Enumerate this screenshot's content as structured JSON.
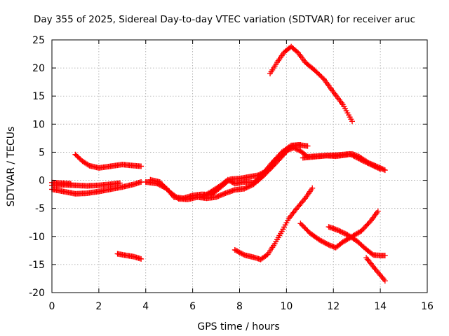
{
  "chart_data": {
    "type": "scatter",
    "title": "Day 355 of 2025, Sidereal Day-to-day VTEC variation (SDTVAR) for receiver aruc",
    "xlabel": "GPS time / hours",
    "ylabel": "SDTVAR / TECUs",
    "xlim": [
      0,
      16
    ],
    "ylim": [
      -20,
      25
    ],
    "xticks": [
      0,
      2,
      4,
      6,
      8,
      10,
      12,
      14,
      16
    ],
    "yticks": [
      -20,
      -15,
      -10,
      -5,
      0,
      5,
      10,
      15,
      20,
      25
    ],
    "grid": true,
    "marker": "plus",
    "marker_color": "#ff0000",
    "series": [
      {
        "points": [
          [
            0.0,
            -1.6
          ],
          [
            0.5,
            -2.0
          ],
          [
            1.0,
            -2.4
          ],
          [
            1.5,
            -2.3
          ],
          [
            2.0,
            -2.0
          ],
          [
            2.5,
            -1.6
          ],
          [
            3.0,
            -1.2
          ],
          [
            3.5,
            -0.7
          ],
          [
            3.8,
            -0.3
          ]
        ]
      },
      {
        "points": [
          [
            0.0,
            -0.9
          ],
          [
            0.5,
            -0.8
          ],
          [
            1.0,
            -0.9
          ],
          [
            1.5,
            -1.0
          ],
          [
            2.0,
            -0.9
          ],
          [
            2.5,
            -0.7
          ],
          [
            2.9,
            -0.5
          ]
        ]
      },
      {
        "points": [
          [
            0.0,
            -0.4
          ],
          [
            0.4,
            -0.5
          ],
          [
            0.8,
            -0.6
          ]
        ]
      },
      {
        "points": [
          [
            1.0,
            4.6
          ],
          [
            1.3,
            3.4
          ],
          [
            1.6,
            2.6
          ],
          [
            2.0,
            2.2
          ],
          [
            2.5,
            2.5
          ],
          [
            3.0,
            2.8
          ],
          [
            3.5,
            2.6
          ],
          [
            3.8,
            2.5
          ]
        ]
      },
      {
        "points": [
          [
            2.8,
            -13.1
          ],
          [
            3.2,
            -13.4
          ],
          [
            3.5,
            -13.6
          ],
          [
            3.8,
            -14.0
          ]
        ]
      },
      {
        "points": [
          [
            4.0,
            -0.3
          ],
          [
            4.5,
            -0.6
          ],
          [
            4.9,
            -1.5
          ],
          [
            5.2,
            -3.0
          ],
          [
            5.6,
            -3.2
          ],
          [
            6.0,
            -2.7
          ],
          [
            6.4,
            -2.5
          ],
          [
            6.8,
            -2.6
          ],
          [
            7.2,
            -1.2
          ],
          [
            7.6,
            0.2
          ],
          [
            8.0,
            0.3
          ],
          [
            8.4,
            0.6
          ],
          [
            8.8,
            0.9
          ],
          [
            9.2,
            1.8
          ],
          [
            9.6,
            3.8
          ],
          [
            10.0,
            5.3
          ],
          [
            10.3,
            5.8
          ],
          [
            10.6,
            5.2
          ],
          [
            10.9,
            4.2
          ],
          [
            11.3,
            4.3
          ],
          [
            11.7,
            4.4
          ],
          [
            12.1,
            4.3
          ],
          [
            12.5,
            4.5
          ],
          [
            12.8,
            4.7
          ],
          [
            13.1,
            4.2
          ],
          [
            13.5,
            3.1
          ],
          [
            14.0,
            2.2
          ],
          [
            14.2,
            1.8
          ]
        ]
      },
      {
        "points": [
          [
            4.2,
            0.1
          ],
          [
            4.6,
            -0.3
          ],
          [
            5.0,
            -2.0
          ],
          [
            5.4,
            -3.3
          ],
          [
            5.8,
            -3.4
          ],
          [
            6.2,
            -3.0
          ],
          [
            6.6,
            -3.2
          ],
          [
            7.0,
            -3.0
          ],
          [
            7.4,
            -2.3
          ],
          [
            7.8,
            -1.7
          ],
          [
            8.2,
            -1.5
          ],
          [
            8.6,
            -0.7
          ],
          [
            9.0,
            0.7
          ],
          [
            9.4,
            2.4
          ],
          [
            9.8,
            4.2
          ],
          [
            10.2,
            6.0
          ],
          [
            10.5,
            6.3
          ],
          [
            10.9,
            6.1
          ]
        ]
      },
      {
        "points": [
          [
            6.4,
            -3.0
          ],
          [
            6.8,
            -2.0
          ],
          [
            7.2,
            -0.9
          ],
          [
            7.5,
            0.1
          ],
          [
            7.8,
            -0.6
          ],
          [
            8.2,
            -0.3
          ],
          [
            8.6,
            -0.4
          ],
          [
            9.0,
            1.2
          ],
          [
            9.4,
            3.2
          ],
          [
            9.8,
            5.0
          ],
          [
            10.2,
            6.2
          ],
          [
            10.6,
            6.3
          ]
        ]
      },
      {
        "points": [
          [
            10.7,
            4.0
          ],
          [
            11.2,
            4.2
          ],
          [
            11.7,
            4.4
          ],
          [
            12.2,
            4.5
          ],
          [
            12.7,
            4.7
          ],
          [
            13.2,
            3.6
          ],
          [
            13.7,
            2.6
          ],
          [
            14.0,
            2.0
          ]
        ]
      },
      {
        "points": [
          [
            9.3,
            19.0
          ],
          [
            9.6,
            21.0
          ],
          [
            9.9,
            22.8
          ],
          [
            10.2,
            23.8
          ],
          [
            10.5,
            22.7
          ],
          [
            10.8,
            21.0
          ],
          [
            11.2,
            19.6
          ],
          [
            11.6,
            18.0
          ],
          [
            12.0,
            15.7
          ],
          [
            12.4,
            13.5
          ],
          [
            12.8,
            10.5
          ]
        ]
      },
      {
        "points": [
          [
            7.8,
            -12.4
          ],
          [
            8.2,
            -13.3
          ],
          [
            8.6,
            -13.7
          ],
          [
            8.9,
            -14.1
          ],
          [
            9.2,
            -13.2
          ],
          [
            9.5,
            -11.3
          ],
          [
            9.8,
            -9.1
          ],
          [
            10.1,
            -6.8
          ],
          [
            10.4,
            -5.2
          ],
          [
            10.8,
            -3.2
          ],
          [
            11.1,
            -1.4
          ]
        ]
      },
      {
        "points": [
          [
            10.6,
            -7.7
          ],
          [
            11.0,
            -9.4
          ],
          [
            11.4,
            -10.6
          ],
          [
            11.8,
            -11.5
          ],
          [
            12.1,
            -12.0
          ],
          [
            12.4,
            -11.0
          ],
          [
            12.8,
            -10.0
          ],
          [
            13.2,
            -9.0
          ],
          [
            13.6,
            -7.2
          ],
          [
            13.9,
            -5.5
          ]
        ]
      },
      {
        "points": [
          [
            11.8,
            -8.3
          ],
          [
            12.2,
            -8.9
          ],
          [
            12.6,
            -9.7
          ],
          [
            13.0,
            -10.8
          ],
          [
            13.4,
            -12.3
          ],
          [
            13.7,
            -13.3
          ],
          [
            14.0,
            -13.4
          ],
          [
            14.2,
            -13.4
          ]
        ]
      },
      {
        "points": [
          [
            13.4,
            -13.8
          ],
          [
            13.8,
            -15.9
          ],
          [
            14.2,
            -17.9
          ]
        ]
      }
    ]
  }
}
